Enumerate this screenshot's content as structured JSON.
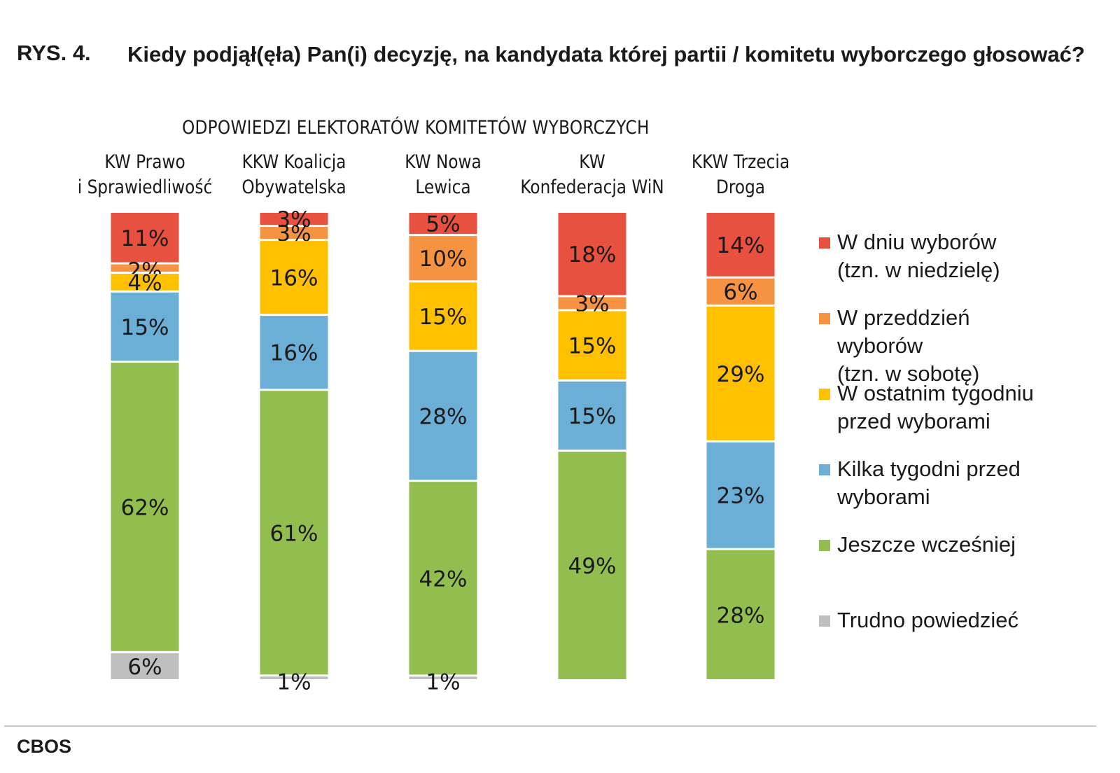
{
  "figure_label": "RYS. 4.",
  "title": "Kiedy podjął(ęła) Pan(i) decyzję, na kandydata której partii / komitetu wyborczego głosować?",
  "source": "CBOS",
  "chart_data": {
    "type": "bar",
    "stacked": true,
    "orientation": "vertical",
    "subtitle": "ODPOWIEDZI ELEKTORATÓW KOMITETÓW WYBORCZYCH",
    "categories": [
      [
        "KW Prawo",
        "i Sprawiedliwość"
      ],
      [
        "KKW Koalicja",
        "Obywatelska"
      ],
      [
        "KW Nowa",
        "Lewica"
      ],
      [
        "KW",
        "Konfederacja WiN"
      ],
      [
        "KKW Trzecia",
        "Droga"
      ]
    ],
    "series": [
      {
        "name": [
          "W dniu wyborów",
          "(tzn. w niedzielę)"
        ],
        "color": "#E8513F",
        "values": [
          11,
          3,
          5,
          18,
          14
        ]
      },
      {
        "name": [
          "W przeddzień",
          "wyborów",
          "(tzn. w sobotę)"
        ],
        "color": "#F59342",
        "values": [
          2,
          3,
          10,
          3,
          6
        ]
      },
      {
        "name": [
          "W ostatnim tygodniu",
          "przed wyborami"
        ],
        "color": "#FFC000",
        "values": [
          4,
          16,
          15,
          15,
          29
        ]
      },
      {
        "name": [
          "Kilka tygodni przed",
          "wyborami"
        ],
        "color": "#6BAED6",
        "values": [
          15,
          16,
          28,
          15,
          23
        ]
      },
      {
        "name": [
          "Jeszcze wcześniej"
        ],
        "color": "#92BE4F",
        "values": [
          62,
          61,
          42,
          49,
          28
        ]
      },
      {
        "name": [
          "Trudno powiedzieć"
        ],
        "color": "#BFBFBF",
        "values": [
          6,
          1,
          1,
          0,
          0
        ]
      }
    ],
    "value_suffix": "%",
    "legend_position": "right",
    "grid": false
  }
}
